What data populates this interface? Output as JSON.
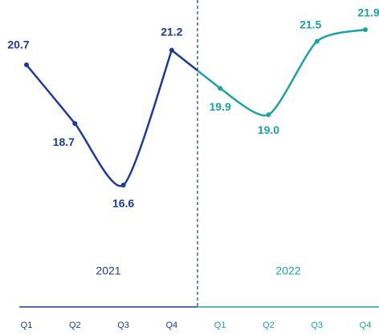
{
  "chart_data": {
    "type": "line",
    "categories": [
      "Q1",
      "Q2",
      "Q3",
      "Q4",
      "Q1",
      "Q2",
      "Q3",
      "Q4"
    ],
    "series": [
      {
        "name": "2021",
        "color": "#1b3a9a",
        "values": [
          20.7,
          18.7,
          16.6,
          21.2,
          null,
          null,
          null,
          null
        ],
        "value_labels": [
          "20.7",
          "18.7",
          "16.6",
          "21.2",
          null,
          null,
          null,
          null
        ]
      },
      {
        "name": "2022",
        "color": "#1ba3a6",
        "values": [
          null,
          null,
          null,
          null,
          19.9,
          19.0,
          21.5,
          21.9
        ],
        "value_labels": [
          null,
          null,
          null,
          null,
          "19.9",
          "19.0",
          "21.5",
          "21.9"
        ]
      }
    ]
  }
}
